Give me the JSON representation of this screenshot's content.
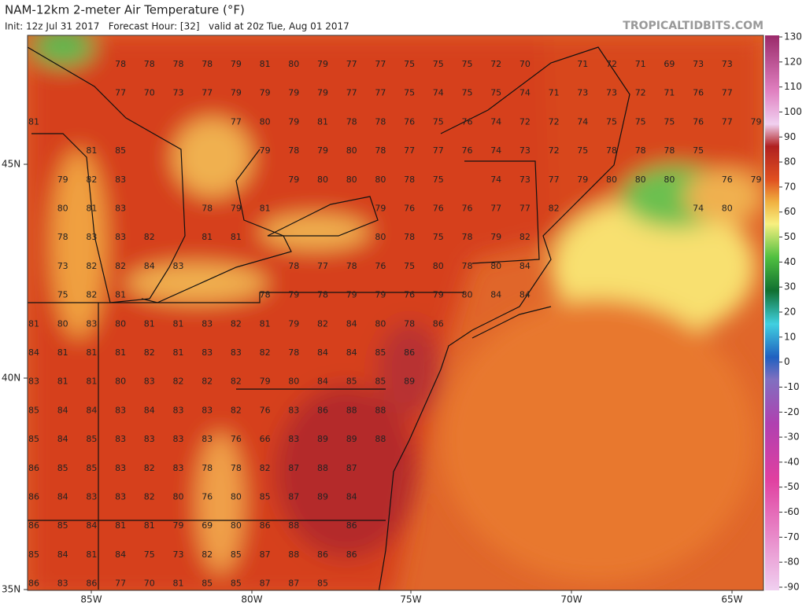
{
  "header": {
    "title": "NAM-12km 2-meter Air Temperature (°F)",
    "subtitle": "Init: 12z Jul 31 2017   Forecast Hour: [32]   valid at 20z Tue, Aug 01 2017",
    "site": "TROPICALTIDBITS.COM"
  },
  "map": {
    "latitude_labels": [
      "45N",
      "40N",
      "35N"
    ],
    "longitude_labels": [
      "85W",
      "80W",
      "75W",
      "70W",
      "65W"
    ],
    "temps": [
      [
        null,
        null,
        null,
        78,
        78,
        78,
        78,
        79,
        81,
        80,
        79,
        77,
        77,
        75,
        75,
        75,
        72,
        70,
        null,
        71,
        72,
        71,
        69,
        73,
        73,
        null
      ],
      [
        null,
        null,
        null,
        77,
        70,
        73,
        77,
        79,
        79,
        79,
        79,
        77,
        77,
        75,
        74,
        75,
        75,
        74,
        71,
        73,
        73,
        72,
        71,
        76,
        77,
        null
      ],
      [
        81,
        null,
        null,
        null,
        null,
        null,
        null,
        77,
        80,
        79,
        81,
        78,
        78,
        76,
        75,
        76,
        74,
        72,
        72,
        74,
        75,
        75,
        75,
        76,
        77,
        79
      ],
      [
        null,
        null,
        81,
        85,
        null,
        null,
        null,
        null,
        79,
        78,
        79,
        80,
        78,
        77,
        77,
        76,
        74,
        73,
        72,
        75,
        78,
        78,
        78,
        75,
        null,
        null
      ],
      [
        null,
        79,
        82,
        83,
        null,
        null,
        null,
        null,
        null,
        79,
        80,
        80,
        80,
        78,
        75,
        null,
        74,
        73,
        77,
        79,
        80,
        80,
        80,
        null,
        76,
        79
      ],
      [
        null,
        80,
        81,
        83,
        null,
        null,
        78,
        79,
        81,
        null,
        null,
        null,
        79,
        76,
        76,
        76,
        77,
        77,
        82,
        null,
        null,
        null,
        null,
        74,
        80,
        null
      ],
      [
        null,
        78,
        83,
        83,
        82,
        null,
        81,
        81,
        null,
        null,
        null,
        null,
        80,
        78,
        75,
        78,
        79,
        82,
        null,
        null,
        null,
        null,
        null,
        null,
        null,
        null
      ],
      [
        null,
        73,
        82,
        82,
        84,
        83,
        null,
        null,
        null,
        78,
        77,
        78,
        76,
        75,
        80,
        78,
        80,
        84,
        null,
        null,
        null,
        null,
        null,
        null,
        null,
        null
      ],
      [
        null,
        75,
        82,
        81,
        null,
        null,
        null,
        null,
        78,
        79,
        78,
        79,
        79,
        76,
        79,
        80,
        84,
        84,
        null,
        null,
        null,
        null,
        null,
        null,
        null,
        null
      ],
      [
        81,
        80,
        83,
        80,
        81,
        81,
        83,
        82,
        81,
        79,
        82,
        84,
        80,
        78,
        86,
        null,
        null,
        null,
        null,
        null,
        null,
        null,
        null,
        null,
        null,
        null
      ],
      [
        84,
        81,
        81,
        81,
        82,
        81,
        83,
        83,
        82,
        78,
        84,
        84,
        85,
        86,
        null,
        null,
        null,
        null,
        null,
        null,
        null,
        null,
        null,
        null,
        null,
        null
      ],
      [
        83,
        81,
        81,
        80,
        83,
        82,
        82,
        82,
        79,
        80,
        84,
        85,
        85,
        89,
        null,
        null,
        null,
        null,
        null,
        null,
        null,
        null,
        null,
        null,
        null,
        null
      ],
      [
        85,
        84,
        84,
        83,
        84,
        83,
        83,
        82,
        76,
        83,
        86,
        88,
        88,
        null,
        null,
        null,
        null,
        null,
        null,
        null,
        null,
        null,
        null,
        null,
        null,
        null
      ],
      [
        85,
        84,
        85,
        83,
        83,
        83,
        83,
        76,
        66,
        83,
        89,
        89,
        88,
        null,
        null,
        null,
        null,
        null,
        null,
        null,
        null,
        null,
        null,
        null,
        null,
        null
      ],
      [
        86,
        85,
        85,
        83,
        82,
        83,
        78,
        78,
        82,
        87,
        88,
        87,
        null,
        null,
        null,
        null,
        null,
        null,
        null,
        null,
        null,
        null,
        null,
        null,
        null,
        null
      ],
      [
        86,
        84,
        83,
        83,
        82,
        80,
        76,
        80,
        85,
        87,
        89,
        84,
        null,
        null,
        null,
        null,
        null,
        null,
        null,
        null,
        null,
        null,
        null,
        null,
        null,
        null
      ],
      [
        86,
        85,
        84,
        81,
        81,
        79,
        69,
        80,
        86,
        88,
        null,
        86,
        null,
        null,
        null,
        null,
        null,
        null,
        null,
        null,
        null,
        null,
        null,
        null,
        null,
        null
      ],
      [
        85,
        84,
        81,
        84,
        75,
        73,
        82,
        85,
        87,
        88,
        86,
        86,
        null,
        null,
        null,
        null,
        null,
        null,
        null,
        null,
        null,
        null,
        null,
        null,
        null,
        null
      ],
      [
        86,
        83,
        86,
        77,
        70,
        81,
        85,
        85,
        87,
        87,
        85,
        null,
        null,
        null,
        null,
        null,
        null,
        null,
        null,
        null,
        null,
        null,
        null,
        null,
        null,
        null
      ]
    ]
  },
  "colorbar": {
    "ticks": [
      130,
      120,
      110,
      100,
      90,
      80,
      70,
      60,
      50,
      40,
      30,
      20,
      10,
      0,
      -10,
      -20,
      -30,
      -40,
      -50,
      -60,
      -70,
      -80,
      -90
    ]
  }
}
